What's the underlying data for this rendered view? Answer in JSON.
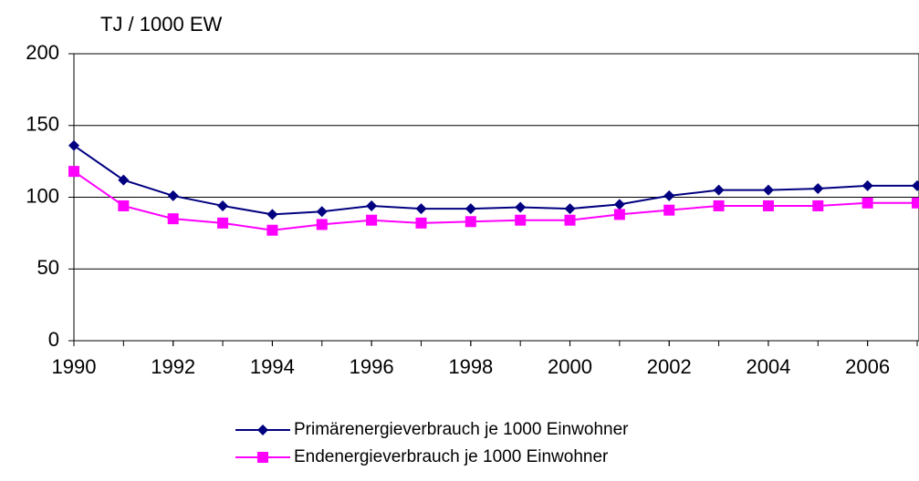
{
  "chart_data": {
    "type": "line",
    "y_label": "TJ / 1000 EW",
    "x": [
      1990,
      1991,
      1992,
      1993,
      1994,
      1995,
      1996,
      1997,
      1998,
      1999,
      2000,
      2001,
      2002,
      2003,
      2004,
      2005,
      2006,
      2007
    ],
    "series": [
      {
        "name": "Primärenergieverbrauch je 1000 Einwohner",
        "color": "#000080",
        "marker": "diamond",
        "values": [
          136,
          112,
          101,
          94,
          88,
          90,
          94,
          92,
          92,
          93,
          92,
          95,
          101,
          105,
          105,
          106,
          108,
          108
        ]
      },
      {
        "name": "Endenergieverbrauch je 1000 Einwohner",
        "color": "#ff00ff",
        "marker": "square",
        "values": [
          118,
          94,
          85,
          82,
          77,
          81,
          84,
          82,
          83,
          84,
          84,
          88,
          91,
          94,
          94,
          94,
          96,
          96
        ]
      }
    ],
    "xlim": [
      1990,
      2007
    ],
    "xticks": [
      1990,
      1992,
      1994,
      1996,
      1998,
      2000,
      2002,
      2004,
      2006
    ],
    "ylim": [
      0,
      200
    ],
    "yticks": [
      0,
      50,
      100,
      150,
      200
    ],
    "grid": true
  }
}
